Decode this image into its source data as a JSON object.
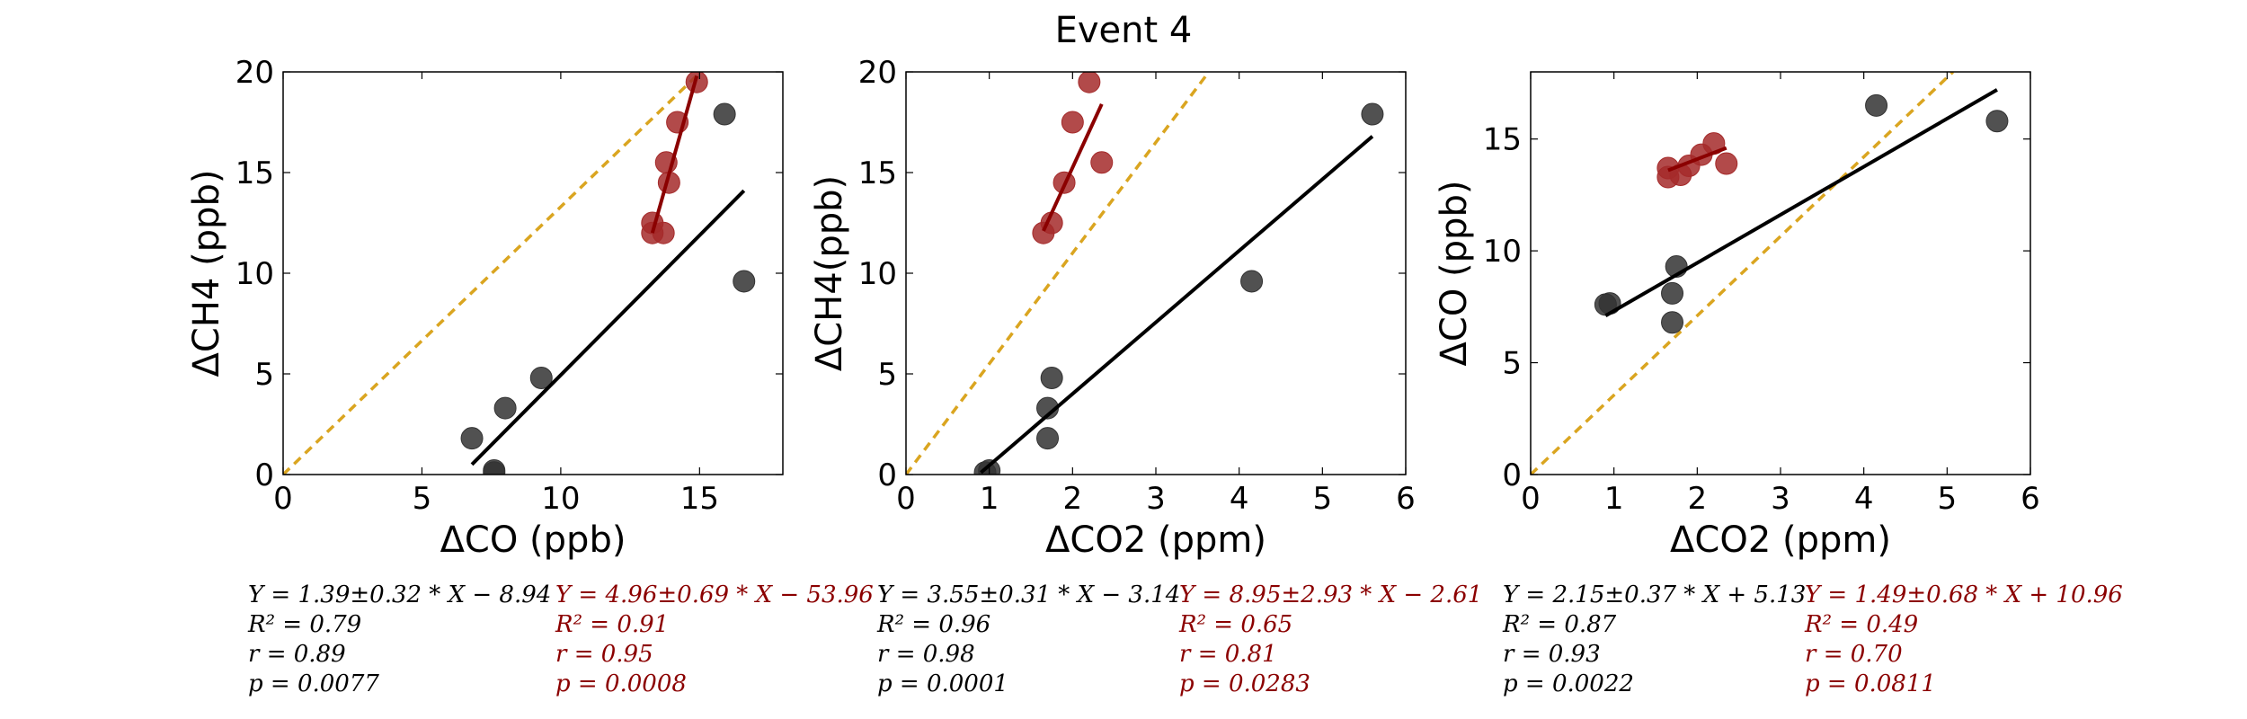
{
  "figure": {
    "title": "Event 4"
  },
  "colors": {
    "black_series": "#000000",
    "red_series": "#8b0000",
    "black_point": "#333333",
    "red_point": "#a52a2a",
    "one_to_one": "#daa520"
  },
  "chart_data": [
    {
      "type": "scatter",
      "title": "",
      "xlabel": "ΔCO (ppb)",
      "ylabel": "ΔCH4 (ppb)",
      "xlim": [
        0,
        18
      ],
      "ylim": [
        0,
        20
      ],
      "xticks": [
        0,
        5,
        10,
        15
      ],
      "yticks": [
        0,
        5,
        10,
        15,
        20
      ],
      "grid": false,
      "reference_line": {
        "style": "dashed",
        "slope": 1.33
      },
      "series": [
        {
          "color_key": "black",
          "points": [
            [
              6.8,
              1.8
            ],
            [
              8.0,
              3.3
            ],
            [
              9.3,
              4.8
            ],
            [
              7.6,
              0.2
            ],
            [
              7.6,
              0.1
            ],
            [
              15.9,
              17.9
            ],
            [
              16.6,
              9.6
            ]
          ],
          "fit_x": [
            6.8,
            16.6
          ],
          "fit_y": [
            0.5,
            14.1
          ],
          "stats": [
            "Y = 1.39±0.32 * X − 8.94",
            "R² = 0.79",
            "r = 0.89",
            "p = 0.0077"
          ]
        },
        {
          "color_key": "red",
          "points": [
            [
              13.3,
              12.0
            ],
            [
              13.7,
              12.0
            ],
            [
              13.3,
              12.5
            ],
            [
              13.9,
              14.5
            ],
            [
              13.8,
              15.5
            ],
            [
              14.2,
              17.5
            ],
            [
              14.9,
              19.5
            ]
          ],
          "fit_x": [
            13.3,
            14.9
          ],
          "fit_y": [
            12.0,
            19.8
          ],
          "stats": [
            "Y = 4.96±0.69 * X − 53.96",
            "R² = 0.91",
            "r = 0.95",
            "p = 0.0008"
          ]
        }
      ]
    },
    {
      "type": "scatter",
      "title": "",
      "xlabel": "ΔCO2 (ppm)",
      "ylabel": "ΔCH4(ppb)",
      "xlim": [
        0,
        6
      ],
      "ylim": [
        0,
        20
      ],
      "xticks": [
        0,
        1,
        2,
        3,
        4,
        5,
        6
      ],
      "yticks": [
        0,
        5,
        10,
        15,
        20
      ],
      "grid": false,
      "reference_line": {
        "style": "dashed",
        "slope": 5.5
      },
      "series": [
        {
          "color_key": "black",
          "points": [
            [
              0.95,
              0.1
            ],
            [
              1.0,
              0.2
            ],
            [
              1.7,
              1.8
            ],
            [
              1.7,
              3.3
            ],
            [
              1.75,
              4.8
            ],
            [
              4.15,
              9.6
            ],
            [
              5.6,
              17.9
            ]
          ],
          "fit_x": [
            0.9,
            5.6
          ],
          "fit_y": [
            0.1,
            16.8
          ],
          "stats": [
            "Y = 3.55±0.31 * X − 3.14",
            "R² = 0.96",
            "r = 0.98",
            "p = 0.0001"
          ]
        },
        {
          "color_key": "red",
          "points": [
            [
              1.65,
              12.0
            ],
            [
              1.75,
              12.5
            ],
            [
              1.9,
              14.5
            ],
            [
              2.0,
              17.5
            ],
            [
              2.2,
              19.5
            ],
            [
              2.35,
              15.5
            ]
          ],
          "fit_x": [
            1.65,
            2.35
          ],
          "fit_y": [
            12.1,
            18.4
          ],
          "stats": [
            "Y = 8.95±2.93 * X − 2.61",
            "R² = 0.65",
            "r = 0.81",
            "p = 0.0283"
          ]
        }
      ]
    },
    {
      "type": "scatter",
      "title": "",
      "xlabel": "ΔCO2 (ppm)",
      "ylabel": "ΔCO (ppb)",
      "xlim": [
        0,
        6
      ],
      "ylim": [
        0,
        18
      ],
      "xticks": [
        0,
        1,
        2,
        3,
        4,
        5,
        6
      ],
      "yticks": [
        0,
        5,
        10,
        15
      ],
      "grid": false,
      "reference_line": {
        "style": "dashed",
        "slope": 3.55
      },
      "series": [
        {
          "color_key": "black",
          "points": [
            [
              0.9,
              7.6
            ],
            [
              0.95,
              7.65
            ],
            [
              1.7,
              6.8
            ],
            [
              1.7,
              8.1
            ],
            [
              1.75,
              9.3
            ],
            [
              4.15,
              16.5
            ],
            [
              5.6,
              15.8
            ]
          ],
          "fit_x": [
            0.9,
            5.6
          ],
          "fit_y": [
            7.1,
            17.2
          ],
          "stats": [
            "Y = 2.15±0.37 * X + 5.13",
            "R² = 0.87",
            "r = 0.93",
            "p = 0.0022"
          ]
        },
        {
          "color_key": "red",
          "points": [
            [
              1.65,
              13.3
            ],
            [
              1.65,
              13.7
            ],
            [
              1.8,
              13.4
            ],
            [
              1.9,
              13.8
            ],
            [
              2.05,
              14.3
            ],
            [
              2.2,
              14.8
            ],
            [
              2.35,
              13.9
            ]
          ],
          "fit_x": [
            1.65,
            2.35
          ],
          "fit_y": [
            13.6,
            14.6
          ],
          "stats": [
            "Y = 1.49±0.68 * X + 10.96",
            "R² = 0.49",
            "r = 0.70",
            "p = 0.0811"
          ]
        }
      ]
    }
  ]
}
